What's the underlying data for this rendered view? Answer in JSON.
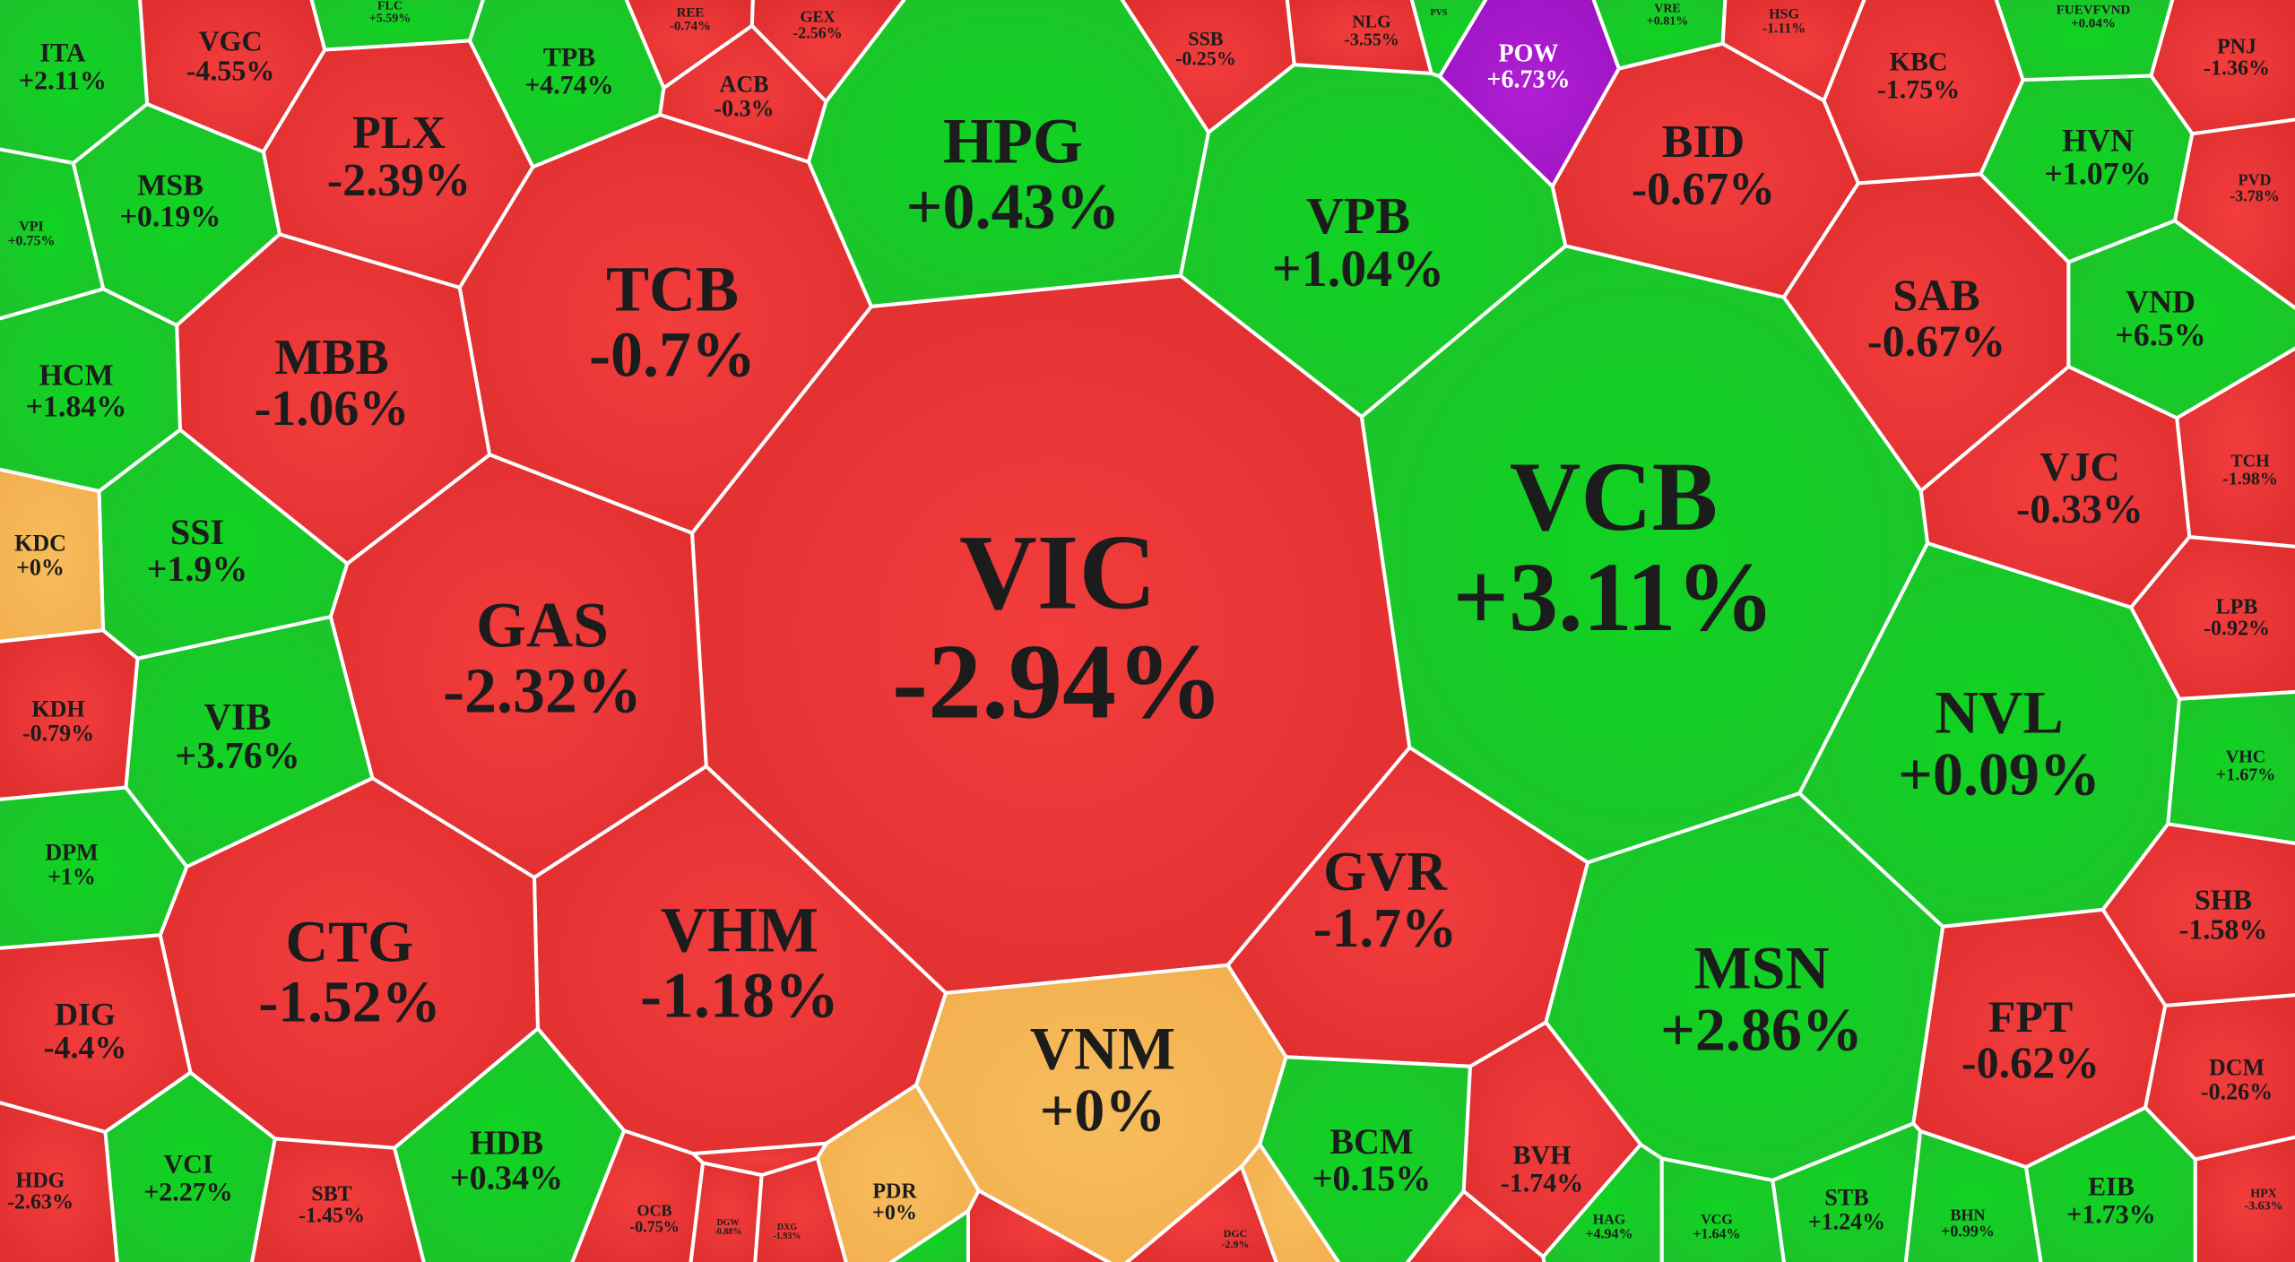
{
  "colors": {
    "down": "#e83a3a",
    "up": "#12cc26",
    "flat": "#f6b85a",
    "ceiling": "#a418c8",
    "border": "#ffffff"
  },
  "cells": [
    {
      "ticker": "VIC",
      "change": "-2.94%",
      "status": "down"
    },
    {
      "ticker": "VCB",
      "change": "+3.11%",
      "status": "up"
    },
    {
      "ticker": "HPG",
      "change": "+0.43%",
      "status": "up"
    },
    {
      "ticker": "TCB",
      "change": "-0.7%",
      "status": "down"
    },
    {
      "ticker": "VPB",
      "change": "+1.04%",
      "status": "up"
    },
    {
      "ticker": "GAS",
      "change": "-2.32%",
      "status": "down"
    },
    {
      "ticker": "VHM",
      "change": "-1.18%",
      "status": "down"
    },
    {
      "ticker": "VNM",
      "change": "+0%",
      "status": "flat"
    },
    {
      "ticker": "GVR",
      "change": "-1.7%",
      "status": "down"
    },
    {
      "ticker": "MSN",
      "change": "+2.86%",
      "status": "up"
    },
    {
      "ticker": "NVL",
      "change": "+0.09%",
      "status": "up"
    },
    {
      "ticker": "CTG",
      "change": "-1.52%",
      "status": "down"
    },
    {
      "ticker": "MBB",
      "change": "-1.06%",
      "status": "down"
    },
    {
      "ticker": "PLX",
      "change": "-2.39%",
      "status": "down"
    },
    {
      "ticker": "BID",
      "change": "-0.67%",
      "status": "down"
    },
    {
      "ticker": "SAB",
      "change": "-0.67%",
      "status": "down"
    },
    {
      "ticker": "FPT",
      "change": "-0.62%",
      "status": "down"
    },
    {
      "ticker": "VJC",
      "change": "-0.33%",
      "status": "down"
    },
    {
      "ticker": "BCM",
      "change": "+0.15%",
      "status": "up"
    },
    {
      "ticker": "HDB",
      "change": "+0.34%",
      "status": "up"
    },
    {
      "ticker": "VIB",
      "change": "+3.76%",
      "status": "up"
    },
    {
      "ticker": "SSI",
      "change": "+1.9%",
      "status": "up"
    },
    {
      "ticker": "HCM",
      "change": "+1.84%",
      "status": "up"
    },
    {
      "ticker": "MSB",
      "change": "+0.19%",
      "status": "up"
    },
    {
      "ticker": "VGC",
      "change": "-4.55%",
      "status": "down"
    },
    {
      "ticker": "ITA",
      "change": "+2.11%",
      "status": "up"
    },
    {
      "ticker": "TPB",
      "change": "+4.74%",
      "status": "up"
    },
    {
      "ticker": "VPI",
      "change": "+0.75%",
      "status": "up"
    },
    {
      "ticker": "KDC",
      "change": "+0%",
      "status": "flat"
    },
    {
      "ticker": "KDH",
      "change": "-0.79%",
      "status": "down"
    },
    {
      "ticker": "DPM",
      "change": "+1%",
      "status": "up"
    },
    {
      "ticker": "DIG",
      "change": "-4.4%",
      "status": "down"
    },
    {
      "ticker": "HDG",
      "change": "-2.63%",
      "status": "down"
    },
    {
      "ticker": "VCI",
      "change": "+2.27%",
      "status": "up"
    },
    {
      "ticker": "SBT",
      "change": "-1.45%",
      "status": "down"
    },
    {
      "ticker": "OCB",
      "change": "-0.75%",
      "status": "down"
    },
    {
      "ticker": "DGW",
      "change": "-0.88%",
      "status": "down"
    },
    {
      "ticker": "DXG",
      "change": "-1.93%",
      "status": "down"
    },
    {
      "ticker": "PDR",
      "change": "+0%",
      "status": "flat"
    },
    {
      "ticker": "DGC",
      "change": "-2.9%",
      "status": "down"
    },
    {
      "ticker": "BVH",
      "change": "-1.74%",
      "status": "down"
    },
    {
      "ticker": "HAG",
      "change": "+4.94%",
      "status": "up"
    },
    {
      "ticker": "VCG",
      "change": "+1.64%",
      "status": "up"
    },
    {
      "ticker": "STB",
      "change": "+1.24%",
      "status": "up"
    },
    {
      "ticker": "BHN",
      "change": "+0.99%",
      "status": "up"
    },
    {
      "ticker": "EIB",
      "change": "+1.73%",
      "status": "up"
    },
    {
      "ticker": "HPX",
      "change": "-3.63%",
      "status": "down"
    },
    {
      "ticker": "DCM",
      "change": "-0.26%",
      "status": "down"
    },
    {
      "ticker": "SHB",
      "change": "-1.58%",
      "status": "down"
    },
    {
      "ticker": "VHC",
      "change": "+1.67%",
      "status": "up"
    },
    {
      "ticker": "LPB",
      "change": "-0.92%",
      "status": "down"
    },
    {
      "ticker": "TCH",
      "change": "-1.98%",
      "status": "down"
    },
    {
      "ticker": "VND",
      "change": "+6.5%",
      "status": "up"
    },
    {
      "ticker": "PVD",
      "change": "-3.78%",
      "status": "down"
    },
    {
      "ticker": "PNJ",
      "change": "-1.36%",
      "status": "down"
    },
    {
      "ticker": "HVN",
      "change": "+1.07%",
      "status": "up"
    },
    {
      "ticker": "KBC",
      "change": "-1.75%",
      "status": "down"
    },
    {
      "ticker": "FUEVFVND",
      "change": "+0.04%",
      "status": "up"
    },
    {
      "ticker": "HSG",
      "change": "-1.11%",
      "status": "down"
    },
    {
      "ticker": "VRE",
      "change": "+0.81%",
      "status": "up"
    },
    {
      "ticker": "POW",
      "change": "+6.73%",
      "status": "ceiling"
    },
    {
      "ticker": "NLG",
      "change": "-3.55%",
      "status": "down"
    },
    {
      "ticker": "SSB",
      "change": "-0.25%",
      "status": "down"
    },
    {
      "ticker": "GEX",
      "change": "-2.56%",
      "status": "down"
    },
    {
      "ticker": "REE",
      "change": "-0.74%",
      "status": "down"
    },
    {
      "ticker": "ACB",
      "change": "-0.3%",
      "status": "down"
    },
    {
      "ticker": "FLC",
      "change": "+5.59%",
      "status": "up"
    },
    {
      "ticker": "PVS",
      "change": "",
      "status": "up"
    },
    {
      "ticker": "",
      "change": "",
      "status": "up"
    },
    {
      "ticker": "",
      "change": "",
      "status": "down"
    },
    {
      "ticker": "",
      "change": "",
      "status": "down"
    },
    {
      "ticker": "",
      "change": "",
      "status": "flat"
    },
    {
      "ticker": "",
      "change": "",
      "status": "down"
    }
  ]
}
